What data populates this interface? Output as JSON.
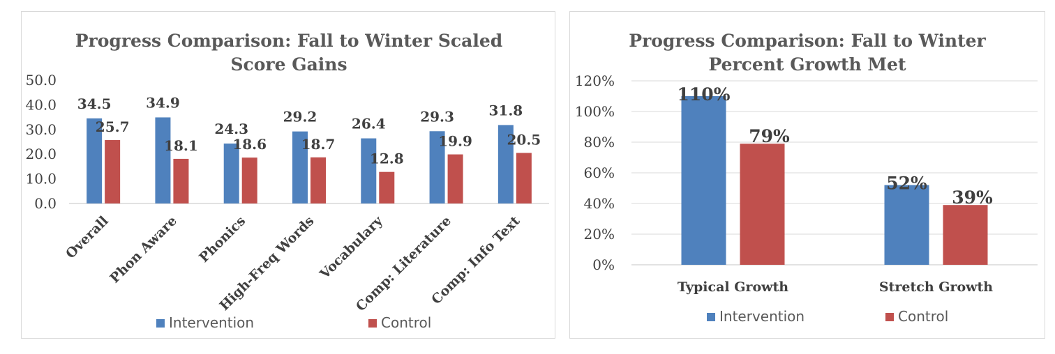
{
  "chart_data": [
    {
      "type": "bar",
      "title_lines": [
        "Progress Comparison: Fall to Winter Scaled",
        "Score Gains"
      ],
      "categories": [
        "Overall",
        "Phon Aware",
        "Phonics",
        "High-Freq Words",
        "Vocabulary",
        "Comp: Literature",
        "Comp: Info Text"
      ],
      "series": [
        {
          "name": "Intervention",
          "color": "#4f81bd",
          "values": [
            34.5,
            34.9,
            24.3,
            29.2,
            26.4,
            29.3,
            31.8
          ],
          "labels": [
            "34.5",
            "34.9",
            "24.3",
            "29.2",
            "26.4",
            "29.3",
            "31.8"
          ]
        },
        {
          "name": "Control",
          "color": "#c0504d",
          "values": [
            25.7,
            18.1,
            18.6,
            18.7,
            12.8,
            19.9,
            20.5
          ],
          "labels": [
            "25.7",
            "18.1",
            "18.6",
            "18.7",
            "12.8",
            "19.9",
            "20.5"
          ]
        }
      ],
      "yticks": [
        "50.0",
        "40.0",
        "30.0",
        "20.0",
        "10.0",
        "0.0"
      ],
      "ylim": [
        0,
        50
      ],
      "grid": false,
      "legend": "bottom"
    },
    {
      "type": "bar",
      "title_lines": [
        "Progress Comparison: Fall to Winter",
        "Percent Growth Met"
      ],
      "categories": [
        "Typical Growth",
        "Stretch Growth"
      ],
      "series": [
        {
          "name": "Intervention",
          "color": "#4f81bd",
          "values": [
            110,
            52
          ],
          "labels": [
            "110%",
            "52%"
          ]
        },
        {
          "name": "Control",
          "color": "#c0504d",
          "values": [
            79,
            39
          ],
          "labels": [
            "79%",
            "39%"
          ]
        }
      ],
      "yticks": [
        "120%",
        "100%",
        "80%",
        "60%",
        "40%",
        "20%",
        "0%"
      ],
      "ylim": [
        0,
        120
      ],
      "grid": true,
      "legend": "bottom"
    }
  ]
}
